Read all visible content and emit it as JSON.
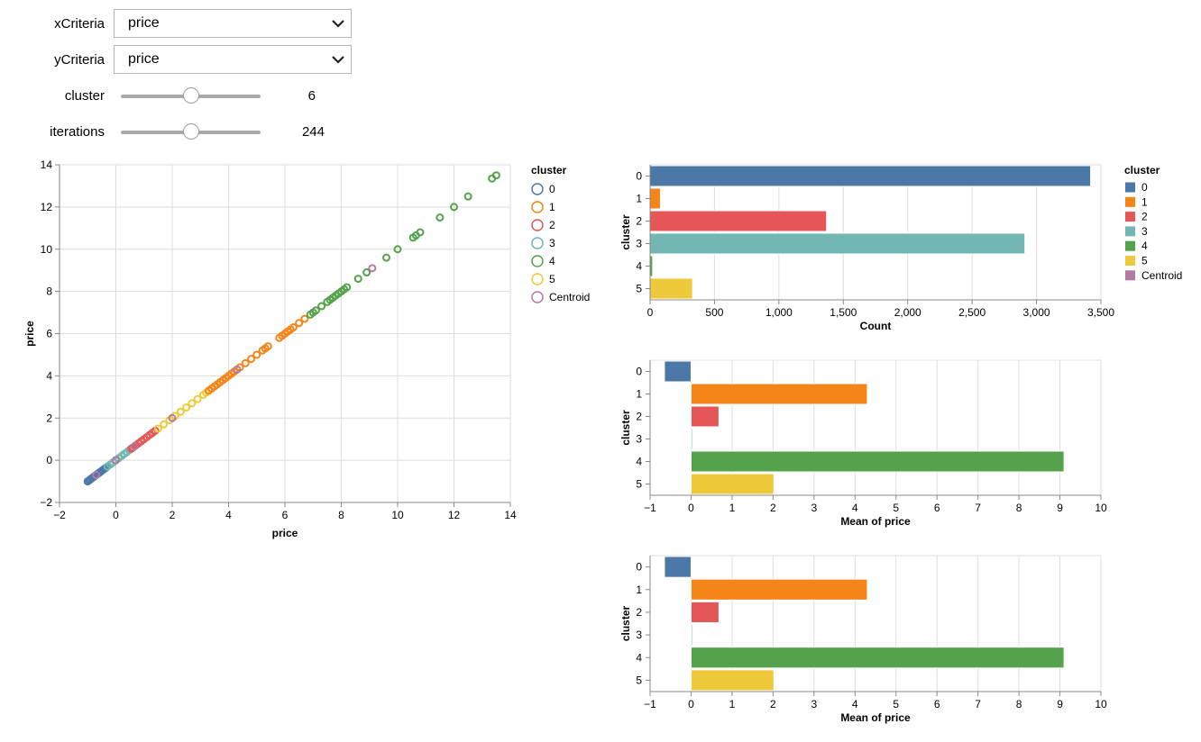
{
  "controls": {
    "xcriteria": {
      "label": "xCriteria",
      "value": "price"
    },
    "ycriteria": {
      "label": "yCriteria",
      "value": "price"
    },
    "cluster": {
      "label": "cluster",
      "value": "6",
      "fraction": 0.5
    },
    "iterations": {
      "label": "iterations",
      "value": "244",
      "fraction": 0.5
    }
  },
  "colors": {
    "c0": "#4c78a8",
    "c1": "#f58518",
    "c2": "#e45756",
    "c3": "#72b7b2",
    "c4": "#54a24b",
    "c5": "#eeca3b",
    "centroid": "#b279a2"
  },
  "chart_data": [
    {
      "type": "scatter",
      "xlabel": "price",
      "ylabel": "price",
      "xlim": [
        -2,
        14
      ],
      "ylim": [
        -2,
        14
      ],
      "xticks": [
        "−2",
        "0",
        "2",
        "4",
        "6",
        "8",
        "10",
        "12",
        "14"
      ],
      "yticks": [
        "−2",
        "0",
        "2",
        "4",
        "6",
        "8",
        "10",
        "12",
        "14"
      ],
      "grid": true,
      "legend": {
        "title": "cluster",
        "position": "right",
        "entries": [
          "0",
          "1",
          "2",
          "3",
          "4",
          "5",
          "Centroid"
        ]
      },
      "series": [
        {
          "cluster": "0",
          "x": [
            -1.0,
            -0.95,
            -0.9,
            -0.85,
            -0.8,
            -0.75,
            -0.7,
            -0.65,
            -0.6,
            -0.55,
            -0.5,
            -0.45,
            -0.4,
            -0.35
          ],
          "y": [
            -1.0,
            -0.95,
            -0.9,
            -0.85,
            -0.8,
            -0.75,
            -0.7,
            -0.65,
            -0.6,
            -0.55,
            -0.5,
            -0.45,
            -0.4,
            -0.35
          ]
        },
        {
          "cluster": "3",
          "x": [
            -0.3,
            -0.2,
            -0.1,
            0.0,
            0.1,
            0.2,
            0.3,
            0.4,
            0.5
          ],
          "y": [
            -0.3,
            -0.2,
            -0.1,
            0.0,
            0.1,
            0.2,
            0.3,
            0.4,
            0.5
          ]
        },
        {
          "cluster": "2",
          "x": [
            0.55,
            0.6,
            0.7,
            0.8,
            0.9,
            1.0,
            1.1,
            1.2,
            1.3,
            1.4
          ],
          "y": [
            0.55,
            0.6,
            0.7,
            0.8,
            0.9,
            1.0,
            1.1,
            1.2,
            1.3,
            1.4
          ]
        },
        {
          "cluster": "5",
          "x": [
            1.5,
            1.7,
            1.9,
            2.1,
            2.3,
            2.5,
            2.7,
            2.9,
            3.1,
            3.2
          ],
          "y": [
            1.5,
            1.7,
            1.9,
            2.1,
            2.3,
            2.5,
            2.7,
            2.9,
            3.1,
            3.2
          ]
        },
        {
          "cluster": "1",
          "x": [
            3.3,
            3.4,
            3.5,
            3.6,
            3.7,
            3.8,
            3.9,
            4.0,
            4.1,
            4.2,
            4.4,
            4.6,
            4.8,
            5.0,
            5.2,
            5.3,
            5.4,
            5.8,
            5.9,
            6.0,
            6.1,
            6.2,
            6.3,
            6.5,
            6.7
          ],
          "y": [
            3.3,
            3.4,
            3.5,
            3.6,
            3.7,
            3.8,
            3.9,
            4.0,
            4.1,
            4.2,
            4.4,
            4.6,
            4.8,
            5.0,
            5.2,
            5.3,
            5.4,
            5.8,
            5.9,
            6.0,
            6.1,
            6.2,
            6.3,
            6.5,
            6.7
          ]
        },
        {
          "cluster": "4",
          "x": [
            6.9,
            7.0,
            7.1,
            7.3,
            7.5,
            7.6,
            7.7,
            7.8,
            7.9,
            8.0,
            8.1,
            8.2,
            8.6,
            8.9,
            9.6,
            10.0,
            10.55,
            10.65,
            10.8,
            11.5,
            12.0,
            12.5,
            13.35,
            13.5
          ],
          "y": [
            6.9,
            7.0,
            7.1,
            7.3,
            7.5,
            7.6,
            7.7,
            7.8,
            7.9,
            8.0,
            8.1,
            8.2,
            8.6,
            8.9,
            9.6,
            10.0,
            10.55,
            10.65,
            10.8,
            11.5,
            12.0,
            12.5,
            13.35,
            13.5
          ]
        },
        {
          "cluster": "Centroid",
          "x": [
            -0.7,
            0.0,
            0.66,
            2.0,
            4.3,
            9.1
          ],
          "y": [
            -0.7,
            0.0,
            0.66,
            2.0,
            4.3,
            9.1
          ]
        }
      ]
    },
    {
      "type": "bar",
      "orientation": "horizontal",
      "categories": [
        "0",
        "1",
        "2",
        "3",
        "4",
        "5"
      ],
      "values": [
        3420,
        80,
        1370,
        2910,
        20,
        330
      ],
      "xlabel": "Count",
      "ylabel": "cluster",
      "xlim": [
        0,
        3500
      ],
      "xticks": [
        "0",
        "500",
        "1,000",
        "1,500",
        "2,000",
        "2,500",
        "3,000",
        "3,500"
      ],
      "legend": {
        "title": "cluster",
        "position": "right",
        "entries": [
          "0",
          "1",
          "2",
          "3",
          "4",
          "5",
          "Centroid"
        ]
      }
    },
    {
      "type": "bar",
      "orientation": "horizontal",
      "categories": [
        "0",
        "1",
        "2",
        "3",
        "4",
        "5"
      ],
      "values": [
        -0.65,
        4.3,
        0.68,
        0.0,
        9.1,
        2.02
      ],
      "xlabel": "Mean of price",
      "ylabel": "cluster",
      "xlim": [
        -1,
        10
      ],
      "xticks": [
        "−1",
        "0",
        "1",
        "2",
        "3",
        "4",
        "5",
        "6",
        "7",
        "8",
        "9",
        "10"
      ]
    },
    {
      "type": "bar",
      "orientation": "horizontal",
      "categories": [
        "0",
        "1",
        "2",
        "3",
        "4",
        "5"
      ],
      "values": [
        -0.65,
        4.3,
        0.68,
        0.0,
        9.1,
        2.02
      ],
      "xlabel": "Mean of price",
      "ylabel": "cluster",
      "xlim": [
        -1,
        10
      ],
      "xticks": [
        "−1",
        "0",
        "1",
        "2",
        "3",
        "4",
        "5",
        "6",
        "7",
        "8",
        "9",
        "10"
      ]
    }
  ]
}
